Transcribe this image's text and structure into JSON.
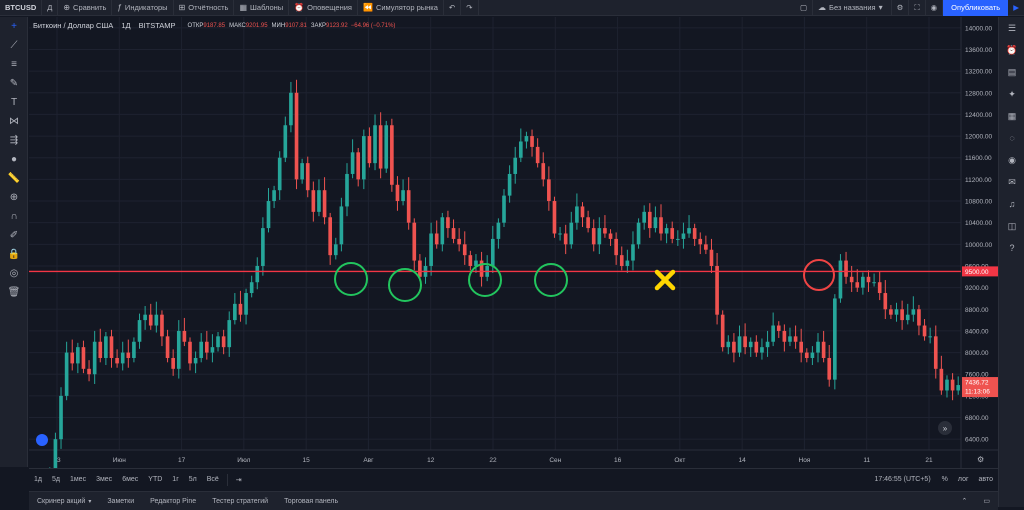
{
  "toolbar": {
    "symbol": "BTCUSD",
    "interval": "Д",
    "compare": "Сравнить",
    "indicators": "Индикаторы",
    "reports": "Отчётность",
    "templates": "Шаблоны",
    "alerts": "Оповещения",
    "simulator": "Симулятор рынка",
    "layout_name": "Без названия",
    "publish": "Опубликовать"
  },
  "legend": {
    "title": "Биткоин / Доллар США",
    "interval": "1Д",
    "exchange": "BITSTAMP",
    "open_label": "ОТКР",
    "open": "9187.85",
    "high_label": "МАКС",
    "high": "9201.95",
    "low_label": "МИН",
    "low": "9107.81",
    "close_label": "ЗАКР",
    "close": "9123.92",
    "change": "−64.96 (−0.71%)"
  },
  "chart_data": {
    "type": "candlestick",
    "y_ticks": [
      "14000.00",
      "13600.00",
      "13200.00",
      "12800.00",
      "12400.00",
      "12000.00",
      "11600.00",
      "11200.00",
      "10800.00",
      "10400.00",
      "10000.00",
      "9600.00",
      "9200.00",
      "8800.00",
      "8400.00",
      "8000.00",
      "7600.00",
      "7200.00",
      "6800.00",
      "6400.00"
    ],
    "ylim": [
      6200,
      14200
    ],
    "x_ticks": [
      "13",
      "Июн",
      "17",
      "Июл",
      "15",
      "Авг",
      "12",
      "22",
      "Сен",
      "16",
      "Окт",
      "14",
      "Ноя",
      "11",
      "21"
    ],
    "horizontal_level": {
      "value": 9500,
      "label": "9500.00",
      "color": "#f23645"
    },
    "current_price": {
      "value": "7436.72",
      "countdown": "11:13:06"
    },
    "close_series": [
      5800,
      6400,
      7200,
      8000,
      7800,
      8100,
      7700,
      7600,
      8200,
      7900,
      8300,
      7900,
      7800,
      8000,
      7900,
      8200,
      8600,
      8700,
      8500,
      8700,
      8300,
      7900,
      7700,
      8400,
      8200,
      7800,
      7900,
      8200,
      8000,
      8100,
      8300,
      8100,
      8600,
      8900,
      8700,
      9100,
      9300,
      9600,
      10300,
      10800,
      11000,
      11600,
      12200,
      12800,
      11200,
      11500,
      11000,
      10600,
      11000,
      10500,
      9800,
      10000,
      10700,
      11300,
      11700,
      11200,
      12000,
      11500,
      12200,
      11400,
      12200,
      11100,
      10800,
      11000,
      10400,
      9700,
      9400,
      9600,
      10200,
      10000,
      10500,
      10300,
      10100,
      10000,
      9800,
      9600,
      9700,
      9400,
      9600,
      10100,
      10400,
      10900,
      11300,
      11600,
      11900,
      12000,
      11800,
      11500,
      11200,
      10800,
      10200,
      10200,
      10000,
      10400,
      10700,
      10500,
      10300,
      10000,
      10300,
      10200,
      10100,
      9800,
      9600,
      9700,
      10000,
      10400,
      10600,
      10300,
      10500,
      10200,
      10300,
      10100,
      10100,
      10200,
      10300,
      10100,
      10000,
      9900,
      9600,
      8700,
      8100,
      8200,
      8000,
      8300,
      8100,
      8200,
      8000,
      8100,
      8200,
      8500,
      8400,
      8200,
      8300,
      8200,
      8000,
      7900,
      8000,
      8200,
      7900,
      7500,
      9000,
      9700,
      9400,
      9300,
      9200,
      9400,
      9300,
      9300,
      9100,
      8800,
      8700,
      8800,
      8600,
      8700,
      8800,
      8500,
      8300,
      8300,
      7700,
      7300,
      7500,
      7300,
      7400
    ]
  },
  "ui_colors": {
    "up": "#26a69a",
    "down": "#ef5350",
    "accent": "#2962ff",
    "bg": "#131722"
  },
  "rangebar": {
    "items": [
      "1д",
      "5д",
      "1мес",
      "3мес",
      "6мес",
      "YTD",
      "1г",
      "5л",
      "Всё"
    ],
    "clock": "17:46:55 (UTC+5)",
    "percent": "%",
    "log": "лог",
    "auto": "авто"
  },
  "tabs": [
    "Скринер акций",
    "Заметки",
    "Редактор Pine",
    "Тестер стратегий",
    "Торговая панель"
  ]
}
